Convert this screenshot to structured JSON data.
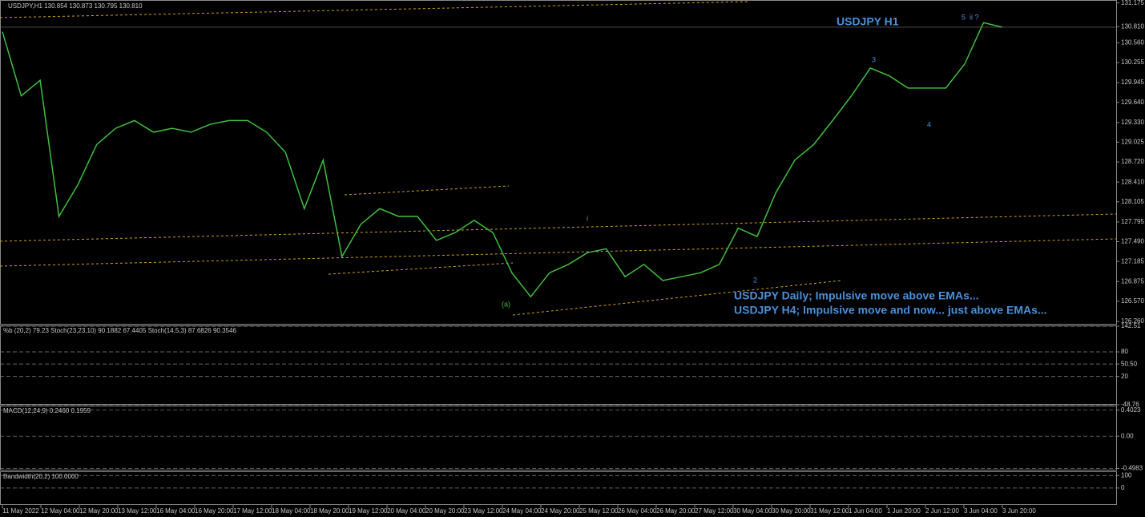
{
  "chart_data": {
    "type": "line",
    "header": "USDJPY,H1  130.854 130.873 130.795 130.810",
    "title": "USDJPY H1",
    "annotations": [
      "USDJPY Daily; Impulsive move above EMAs...",
      "USDJPY H4; Impulsive move and now... just above EMAs..."
    ],
    "wave_labels": [
      "3",
      "5",
      "ii ?",
      "4",
      "2",
      "(a)",
      "i"
    ],
    "series": [
      {
        "name": "USDJPY",
        "color": "#3fbf3f",
        "values": [
          130.73,
          129.74,
          129.98,
          127.88,
          128.37,
          128.99,
          129.24,
          129.36,
          129.18,
          129.24,
          129.18,
          129.3,
          129.36,
          129.36,
          129.18,
          128.87,
          128.0,
          128.75,
          127.26,
          127.76,
          128.0,
          127.88,
          127.88,
          127.51,
          127.63,
          127.82,
          127.63,
          127.01,
          126.64,
          127.01,
          127.14,
          127.32,
          127.38,
          126.95,
          127.14,
          126.89,
          126.95,
          127.01,
          127.14,
          127.7,
          127.57,
          128.25,
          128.75,
          128.99,
          129.36,
          129.74,
          130.17,
          130.05,
          129.86,
          129.86,
          129.86,
          130.23,
          130.87,
          130.8
        ]
      }
    ],
    "xtick_labels": [
      "11 May 2022",
      "12 May 04:00",
      "12 May 20:00",
      "13 May 12:00",
      "16 May 04:00",
      "16 May 20:00",
      "17 May 12:00",
      "18 May 04:00",
      "18 May 20:00",
      "19 May 12:00",
      "20 May 04:00",
      "20 May 20:00",
      "23 May 12:00",
      "24 May 04:00",
      "24 May 20:00",
      "25 May 12:00",
      "26 May 04:00",
      "26 May 20:00",
      "27 May 12:00",
      "30 May 04:00",
      "30 May 20:00",
      "31 May 12:00",
      "1 Jun 04:00",
      "1 Jun 20:00",
      "2 Jun 12:00",
      "3 Jun 04:00",
      "3 Jun 20:00"
    ],
    "ylim": [
      126.21,
      131.22
    ],
    "yticks": [
      131.175,
      {
        "value": 130.81,
        "label": "130.810"
      },
      {
        "value": 130.56,
        "label": "130.560"
      },
      130.255,
      129.945,
      {
        "value": 129.64,
        "label": "129.640"
      },
      {
        "value": 129.33,
        "label": "129.330"
      },
      129.025,
      {
        "value": 128.72,
        "label": "128.720"
      },
      {
        "value": 128.41,
        "label": "128.410"
      },
      128.105,
      127.795,
      {
        "value": 127.49,
        "label": "127.490"
      },
      127.185,
      126.875,
      {
        "value": 126.57,
        "label": "126.570"
      },
      {
        "value": 126.26,
        "label": "126.260"
      }
    ],
    "panels": [
      {
        "title": "%b (20,2) 79.23  Stoch(23,23,10) 90.1882 67.4405  Stoch(14,5,3) 87.6826 90.3546",
        "ylim": [
          -48.76,
          142.51
        ],
        "yticks": [
          142.51,
          80,
          {
            "value": 50.5,
            "label": "50.50"
          },
          20,
          -48.76
        ]
      },
      {
        "title": "MACD(12,24,9) 0.2460 0.1959",
        "ylim": [
          -0.53,
          0.46
        ],
        "yticks": [
          0.4023,
          {
            "value": 0,
            "label": "0.00"
          },
          -0.4983
        ]
      },
      {
        "title": "Bandwidth(20,2) 100.0000",
        "ylim": [
          -135,
          127
        ],
        "yticks": [
          100,
          0
        ]
      }
    ]
  }
}
